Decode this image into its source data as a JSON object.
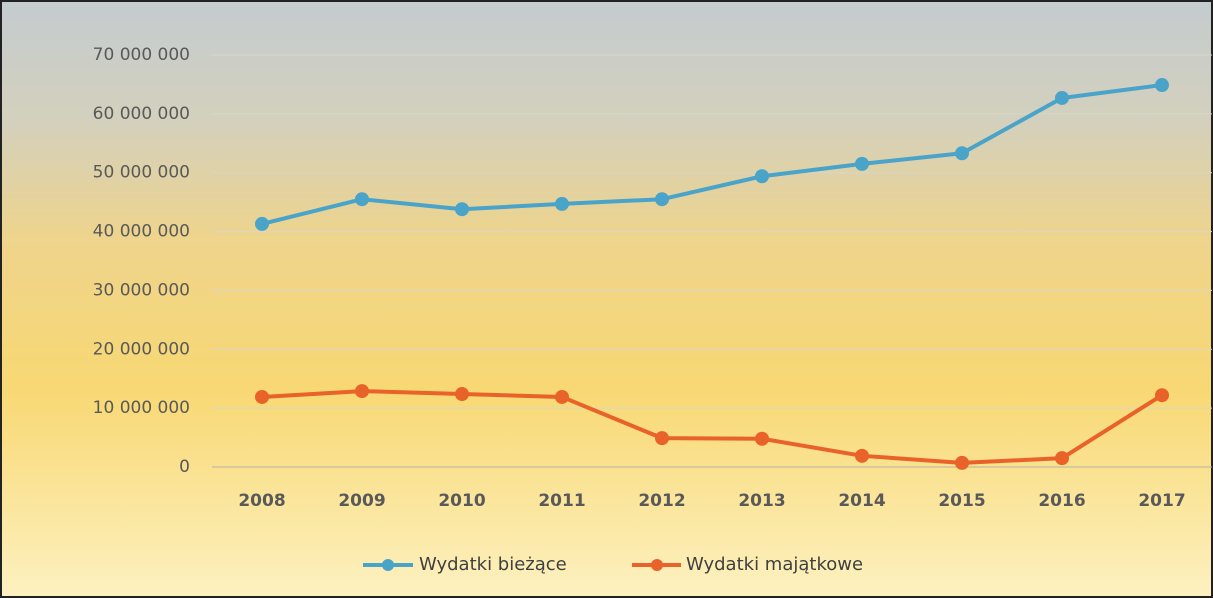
{
  "chart_data": {
    "type": "line",
    "categories": [
      "2008",
      "2009",
      "2010",
      "2011",
      "2012",
      "2013",
      "2014",
      "2015",
      "2016",
      "2017"
    ],
    "series": [
      {
        "name": "Wydatki bieżące",
        "color": "#4aa3c9",
        "values": [
          41300000,
          45500000,
          43800000,
          44700000,
          45500000,
          49400000,
          51500000,
          53300000,
          62700000,
          64900000
        ]
      },
      {
        "name": "Wydatki majątkowe",
        "color": "#e8622a",
        "values": [
          11900000,
          12900000,
          12400000,
          11900000,
          4900000,
          4800000,
          1900000,
          700000,
          1500000,
          12200000
        ]
      }
    ],
    "ylim": [
      0,
      70000000
    ],
    "yticks": [
      {
        "value": 0,
        "label": "0"
      },
      {
        "value": 10000000,
        "label": "10 000 000"
      },
      {
        "value": 20000000,
        "label": "20 000 000"
      },
      {
        "value": 30000000,
        "label": "30 000 000"
      },
      {
        "value": 40000000,
        "label": "40 000 000"
      },
      {
        "value": 50000000,
        "label": "50 000 000"
      },
      {
        "value": 60000000,
        "label": "60 000 000"
      },
      {
        "value": 70000000,
        "label": "70 000 000"
      }
    ],
    "grid": true,
    "legend": "bottom"
  }
}
